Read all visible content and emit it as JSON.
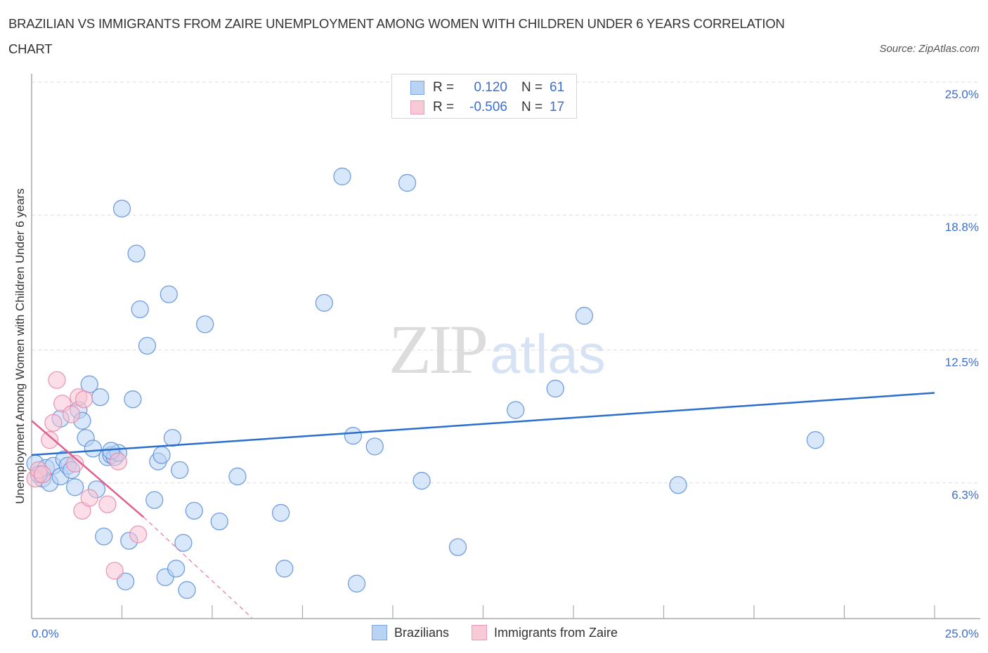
{
  "title": {
    "line1": "BRAZILIAN VS IMMIGRANTS FROM ZAIRE UNEMPLOYMENT AMONG WOMEN WITH CHILDREN UNDER 6 YEARS CORRELATION",
    "line2": "CHART"
  },
  "source": "Source: ZipAtlas.com",
  "watermark": {
    "zip": "ZIP",
    "atlas": "atlas"
  },
  "legend_top": [
    {
      "r_label": "R =",
      "r_value": "0.120",
      "n_label": "N =",
      "n_value": "61"
    },
    {
      "r_label": "R =",
      "r_value": "-0.506",
      "n_label": "N =",
      "n_value": "17"
    }
  ],
  "legend_bottom": [
    {
      "label": "Brazilians"
    },
    {
      "label": "Immigrants from Zaire"
    }
  ],
  "colors": {
    "blue_fill": "#b9d3f5",
    "blue_stroke": "#5a8fd8",
    "blue_line": "#2a6fce",
    "pink_fill": "#f8c3d3",
    "pink_stroke": "#e88aa8",
    "pink_line": "#e0608a",
    "tick_label": "#3b6fd0",
    "grid": "#dddddd"
  },
  "chart_data": {
    "type": "scatter",
    "title": "BRAZILIAN VS IMMIGRANTS FROM ZAIRE UNEMPLOYMENT AMONG WOMEN WITH CHILDREN UNDER 6 YEARS CORRELATION CHART",
    "xlabel": "",
    "ylabel": "Unemployment Among Women with Children Under 6 years",
    "xlim": [
      0,
      25
    ],
    "ylim": [
      0,
      25
    ],
    "x_tick_labels": [
      "0.0%",
      "25.0%"
    ],
    "y_tick_labels": [
      "6.3%",
      "12.5%",
      "18.8%",
      "25.0%"
    ],
    "y_ticks": [
      6.3,
      12.5,
      18.8,
      25.0
    ],
    "grid": true,
    "legend_position": "bottom",
    "series": [
      {
        "name": "Brazilians",
        "R": 0.12,
        "N": 61,
        "trendline": {
          "x": [
            0,
            25
          ],
          "y": [
            7.6,
            10.5
          ]
        },
        "points": [
          [
            0.1,
            7.2
          ],
          [
            0.3,
            6.5
          ],
          [
            0.4,
            7.0
          ],
          [
            0.5,
            6.3
          ],
          [
            0.6,
            7.1
          ],
          [
            0.8,
            6.6
          ],
          [
            0.9,
            7.4
          ],
          [
            1.0,
            7.1
          ],
          [
            1.1,
            6.9
          ],
          [
            1.2,
            6.1
          ],
          [
            0.8,
            9.3
          ],
          [
            1.3,
            9.7
          ],
          [
            1.4,
            9.2
          ],
          [
            1.5,
            8.4
          ],
          [
            1.6,
            10.9
          ],
          [
            1.7,
            7.9
          ],
          [
            1.8,
            6.0
          ],
          [
            1.9,
            10.3
          ],
          [
            2.0,
            3.8
          ],
          [
            2.1,
            7.5
          ],
          [
            2.2,
            7.6
          ],
          [
            2.3,
            7.5
          ],
          [
            2.4,
            7.7
          ],
          [
            2.5,
            19.1
          ],
          [
            2.6,
            1.7
          ],
          [
            2.7,
            3.6
          ],
          [
            2.8,
            10.2
          ],
          [
            2.9,
            17.0
          ],
          [
            3.0,
            14.4
          ],
          [
            3.2,
            12.7
          ],
          [
            3.4,
            5.5
          ],
          [
            3.5,
            7.3
          ],
          [
            3.6,
            7.6
          ],
          [
            3.7,
            1.9
          ],
          [
            3.8,
            15.1
          ],
          [
            3.9,
            8.4
          ],
          [
            4.0,
            2.3
          ],
          [
            4.1,
            6.9
          ],
          [
            4.2,
            3.5
          ],
          [
            4.3,
            1.3
          ],
          [
            4.5,
            5.0
          ],
          [
            4.8,
            13.7
          ],
          [
            5.2,
            4.5
          ],
          [
            5.7,
            6.6
          ],
          [
            6.9,
            4.9
          ],
          [
            7.0,
            2.3
          ],
          [
            8.1,
            14.7
          ],
          [
            8.6,
            20.6
          ],
          [
            8.9,
            8.5
          ],
          [
            9.0,
            1.6
          ],
          [
            9.5,
            8.0
          ],
          [
            10.4,
            20.3
          ],
          [
            10.8,
            6.4
          ],
          [
            11.8,
            3.3
          ],
          [
            13.4,
            9.7
          ],
          [
            14.5,
            10.7
          ],
          [
            15.3,
            14.1
          ],
          [
            17.9,
            6.2
          ],
          [
            21.7,
            8.3
          ],
          [
            0.2,
            6.7
          ],
          [
            2.2,
            7.8
          ]
        ]
      },
      {
        "name": "Immigrants from Zaire",
        "R": -0.506,
        "N": 17,
        "trendline": {
          "x": [
            0,
            3.1
          ],
          "y": [
            9.2,
            4.7
          ],
          "dashed_extension": {
            "x": [
              3.1,
              6.1
            ],
            "y": [
              4.7,
              0
            ]
          }
        },
        "points": [
          [
            0.1,
            6.5
          ],
          [
            0.2,
            6.9
          ],
          [
            0.3,
            6.7
          ],
          [
            0.5,
            8.3
          ],
          [
            0.6,
            9.1
          ],
          [
            0.7,
            11.1
          ],
          [
            0.85,
            10.0
          ],
          [
            1.1,
            9.5
          ],
          [
            1.2,
            7.2
          ],
          [
            1.3,
            10.3
          ],
          [
            1.4,
            5.0
          ],
          [
            1.45,
            10.2
          ],
          [
            1.6,
            5.6
          ],
          [
            2.1,
            5.3
          ],
          [
            2.3,
            2.2
          ],
          [
            2.4,
            7.3
          ],
          [
            2.95,
            3.9
          ]
        ]
      }
    ]
  }
}
